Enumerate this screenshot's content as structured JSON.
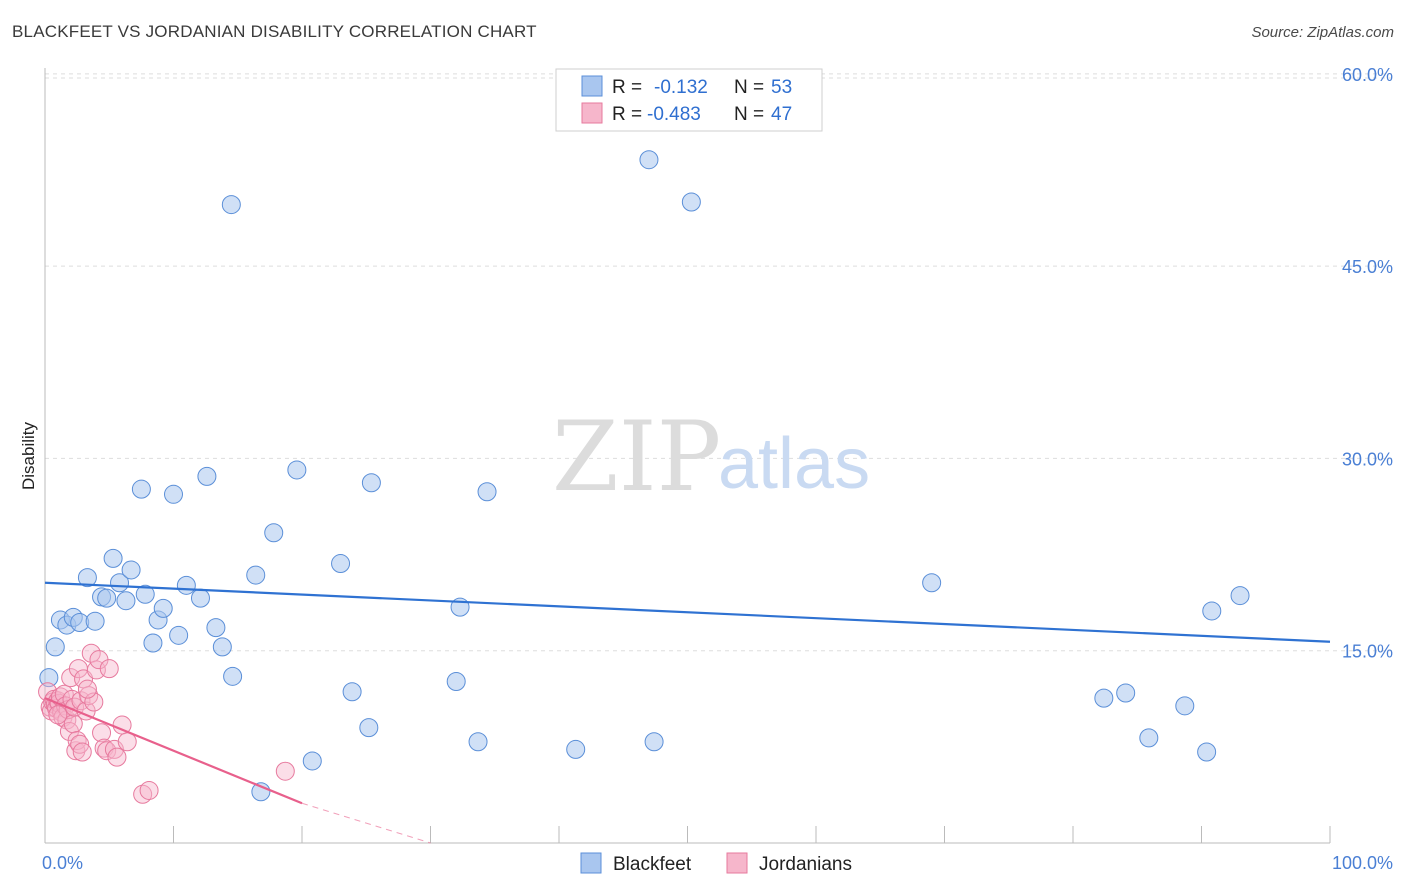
{
  "title": "BLACKFEET VS JORDANIAN DISABILITY CORRELATION CHART",
  "source": "Source: ZipAtlas.com",
  "watermark": {
    "zip": "ZIP",
    "atlas": "atlas"
  },
  "colors": {
    "blackfeet_fill": "#a9c6ef",
    "blackfeet_stroke": "#5b8fd8",
    "blackfeet_line": "#2f72d2",
    "jordanian_fill": "#f6b6cb",
    "jordanian_stroke": "#e77a9e",
    "jordanian_line": "#e8608c",
    "tick_text": "#4a7fd4",
    "grid": "#dddddd"
  },
  "legend": {
    "items": [
      {
        "r_label": "R =",
        "r_value": "-0.132",
        "n_label": "N =",
        "n_value": "53"
      },
      {
        "r_label": "R =",
        "r_value": "-0.483",
        "n_label": "N =",
        "n_value": "47"
      }
    ]
  },
  "chart_data": {
    "type": "scatter",
    "title": "BLACKFEET VS JORDANIAN DISABILITY CORRELATION CHART",
    "xlabel": "",
    "ylabel": "Disability",
    "xlim": [
      0,
      100
    ],
    "ylim": [
      0,
      61
    ],
    "x_tick_labels": [
      "0.0%",
      "100.0%"
    ],
    "y_ticks": [
      15,
      30,
      45,
      60
    ],
    "y_tick_labels": [
      "15.0%",
      "30.0%",
      "45.0%",
      "60.0%"
    ],
    "grid": true,
    "series": [
      {
        "name": "Blackfeet",
        "r": -0.132,
        "n": 53,
        "trend": {
          "x0": 0,
          "y0": 20.3,
          "x1": 100,
          "y1": 15.7
        },
        "points": [
          [
            0.3,
            12.9
          ],
          [
            0.8,
            15.3
          ],
          [
            1.2,
            17.4
          ],
          [
            1.7,
            17.0
          ],
          [
            2.2,
            17.6
          ],
          [
            2.7,
            17.2
          ],
          [
            3.3,
            20.7
          ],
          [
            3.9,
            17.3
          ],
          [
            4.4,
            19.2
          ],
          [
            4.8,
            19.1
          ],
          [
            5.3,
            22.2
          ],
          [
            5.8,
            20.3
          ],
          [
            6.3,
            18.9
          ],
          [
            6.7,
            21.3
          ],
          [
            7.5,
            27.6
          ],
          [
            7.8,
            19.4
          ],
          [
            8.4,
            15.6
          ],
          [
            8.8,
            17.4
          ],
          [
            9.2,
            18.3
          ],
          [
            10.0,
            27.2
          ],
          [
            10.4,
            16.2
          ],
          [
            11.0,
            20.1
          ],
          [
            12.1,
            19.1
          ],
          [
            12.6,
            28.6
          ],
          [
            13.3,
            16.8
          ],
          [
            13.8,
            15.3
          ],
          [
            14.6,
            13.0
          ],
          [
            14.5,
            49.8
          ],
          [
            16.4,
            20.9
          ],
          [
            16.8,
            4.0
          ],
          [
            17.8,
            24.2
          ],
          [
            19.6,
            29.1
          ],
          [
            20.8,
            6.4
          ],
          [
            23.0,
            21.8
          ],
          [
            23.9,
            11.8
          ],
          [
            25.2,
            9.0
          ],
          [
            25.4,
            28.1
          ],
          [
            32.0,
            12.6
          ],
          [
            32.3,
            18.4
          ],
          [
            33.7,
            7.9
          ],
          [
            34.4,
            27.4
          ],
          [
            41.3,
            7.3
          ],
          [
            47.0,
            53.3
          ],
          [
            47.4,
            7.9
          ],
          [
            50.3,
            50.0
          ],
          [
            69.0,
            20.3
          ],
          [
            82.4,
            11.3
          ],
          [
            84.1,
            11.7
          ],
          [
            85.9,
            8.2
          ],
          [
            88.7,
            10.7
          ],
          [
            90.4,
            7.1
          ],
          [
            90.8,
            18.1
          ],
          [
            93.0,
            19.3
          ]
        ]
      },
      {
        "name": "Jordanians",
        "r": -0.483,
        "n": 47,
        "trend": {
          "x0": 0,
          "y0": 11.3,
          "x1": 20,
          "y1": 3.1,
          "dash_x1": 30,
          "dash_y1": -1.0
        },
        "points": [
          [
            0.2,
            11.8
          ],
          [
            0.4,
            10.6
          ],
          [
            0.5,
            10.3
          ],
          [
            0.6,
            11.0
          ],
          [
            0.7,
            11.2
          ],
          [
            0.8,
            10.8
          ],
          [
            0.9,
            10.5
          ],
          [
            1.0,
            11.1
          ],
          [
            1.1,
            10.9
          ],
          [
            1.2,
            11.4
          ],
          [
            1.3,
            10.2
          ],
          [
            1.4,
            9.8
          ],
          [
            1.5,
            11.6
          ],
          [
            1.6,
            10.7
          ],
          [
            1.7,
            9.6
          ],
          [
            1.8,
            10.4
          ],
          [
            1.9,
            8.7
          ],
          [
            2.0,
            12.9
          ],
          [
            2.1,
            11.2
          ],
          [
            2.2,
            9.3
          ],
          [
            2.3,
            10.6
          ],
          [
            2.4,
            7.2
          ],
          [
            2.5,
            8.0
          ],
          [
            2.6,
            13.6
          ],
          [
            2.7,
            7.7
          ],
          [
            2.8,
            11.1
          ],
          [
            2.9,
            7.1
          ],
          [
            3.0,
            12.8
          ],
          [
            3.2,
            10.3
          ],
          [
            3.4,
            11.5
          ],
          [
            3.6,
            14.8
          ],
          [
            3.8,
            11.0
          ],
          [
            4.0,
            13.5
          ],
          [
            4.2,
            14.3
          ],
          [
            4.4,
            8.6
          ],
          [
            4.6,
            7.4
          ],
          [
            4.8,
            7.2
          ],
          [
            5.0,
            13.6
          ],
          [
            5.4,
            7.3
          ],
          [
            5.6,
            6.7
          ],
          [
            6.0,
            9.2
          ],
          [
            6.4,
            7.9
          ],
          [
            7.6,
            3.8
          ],
          [
            8.1,
            4.1
          ],
          [
            18.7,
            5.6
          ],
          [
            1.0,
            10.0
          ],
          [
            3.3,
            12.0
          ]
        ]
      }
    ]
  },
  "bottom_legend": {
    "series1": "Blackfeet",
    "series2": "Jordanians"
  }
}
